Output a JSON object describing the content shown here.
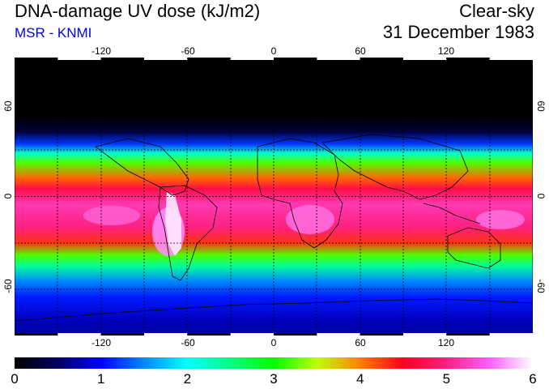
{
  "header": {
    "title": "DNA-damage UV dose (kJ/m2)",
    "source": "MSR - KNMI",
    "sky_condition": "Clear-sky",
    "date": "31 December 1983"
  },
  "map": {
    "longitude_ticks": [
      "-120",
      "-60",
      "0",
      "60",
      "120"
    ],
    "latitude_ticks": [
      "60",
      "0",
      "-60"
    ],
    "longitude_range": [
      -180,
      180
    ],
    "latitude_range": [
      -90,
      90
    ],
    "field_bands": [
      {
        "lat": 90,
        "value": 0.0
      },
      {
        "lat": 52,
        "value": 0.0
      },
      {
        "lat": 42,
        "value": 0.3
      },
      {
        "lat": 34,
        "value": 1.2
      },
      {
        "lat": 28,
        "value": 2.2
      },
      {
        "lat": 22,
        "value": 3.2
      },
      {
        "lat": 12,
        "value": 4.1
      },
      {
        "lat": 5,
        "value": 4.7
      },
      {
        "lat": -5,
        "value": 5.2
      },
      {
        "lat": -20,
        "value": 5.0
      },
      {
        "lat": -30,
        "value": 4.3
      },
      {
        "lat": -38,
        "value": 3.2
      },
      {
        "lat": -45,
        "value": 2.4
      },
      {
        "lat": -55,
        "value": 1.5
      },
      {
        "lat": -65,
        "value": 1.1
      },
      {
        "lat": -80,
        "value": 0.8
      },
      {
        "lat": -90,
        "value": 0.7
      }
    ]
  },
  "colorbar": {
    "min": 0,
    "max": 6,
    "labels": [
      "0",
      "1",
      "2",
      "3",
      "4",
      "5",
      "6"
    ],
    "stops": [
      {
        "value": 0.0,
        "color": "#000000"
      },
      {
        "value": 0.5,
        "color": "#000060"
      },
      {
        "value": 1.0,
        "color": "#0000ff"
      },
      {
        "value": 1.5,
        "color": "#0088ff"
      },
      {
        "value": 2.0,
        "color": "#00ffff"
      },
      {
        "value": 2.5,
        "color": "#00ff80"
      },
      {
        "value": 3.0,
        "color": "#00ff00"
      },
      {
        "value": 3.5,
        "color": "#c0ff00"
      },
      {
        "value": 4.0,
        "color": "#ff8000"
      },
      {
        "value": 4.5,
        "color": "#ff0020"
      },
      {
        "value": 5.0,
        "color": "#ff2080"
      },
      {
        "value": 5.5,
        "color": "#ff60ff"
      },
      {
        "value": 6.0,
        "color": "#ffffff"
      }
    ]
  }
}
